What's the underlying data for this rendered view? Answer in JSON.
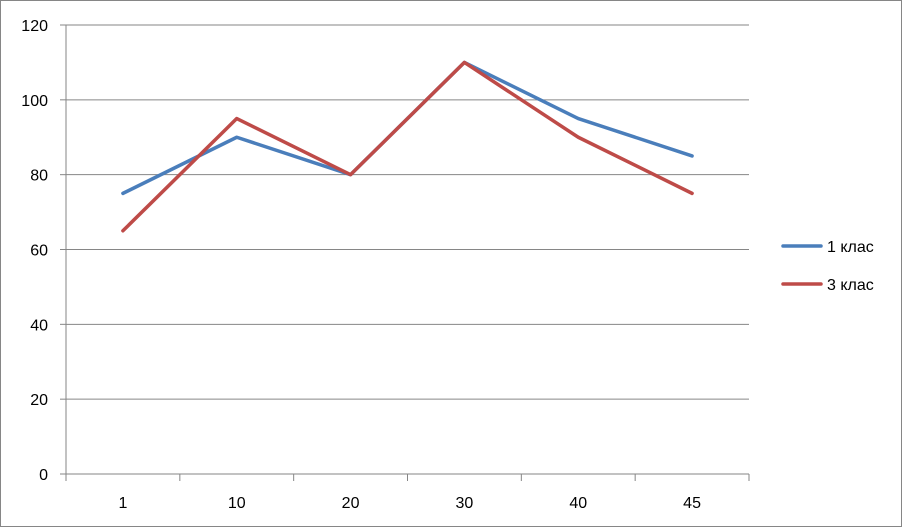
{
  "chart_data": {
    "type": "line",
    "categories": [
      "1",
      "10",
      "20",
      "30",
      "40",
      "45"
    ],
    "series": [
      {
        "name": "1 клас",
        "values": [
          75,
          90,
          80,
          110,
          95,
          85
        ],
        "color": "#4A7EBB"
      },
      {
        "name": "3 клас",
        "values": [
          65,
          95,
          80,
          110,
          90,
          75
        ],
        "color": "#BE4B48"
      }
    ],
    "ylim": [
      0,
      120
    ],
    "yticks": [
      "0",
      "20",
      "40",
      "60",
      "80",
      "100",
      "120"
    ],
    "grid": true,
    "legend_position": "right"
  }
}
